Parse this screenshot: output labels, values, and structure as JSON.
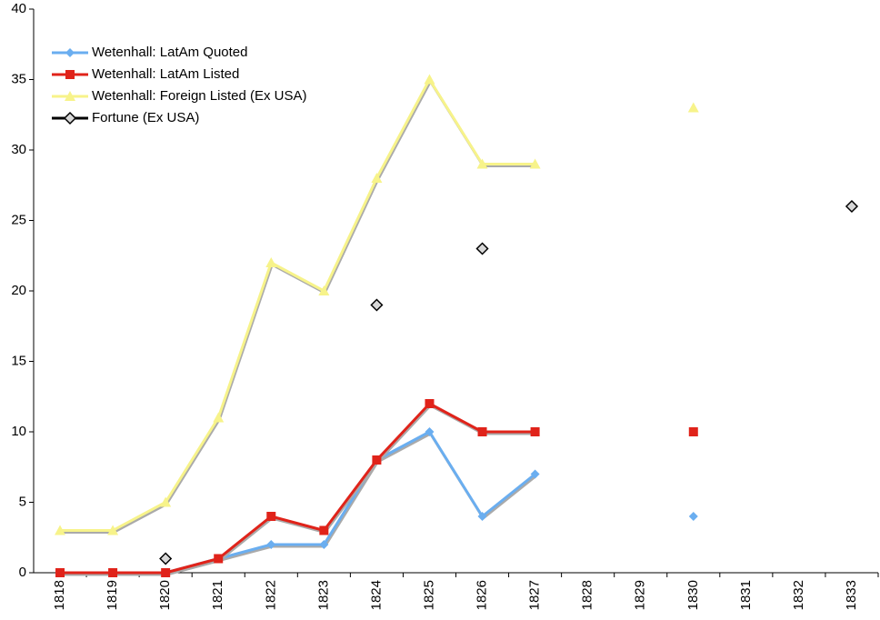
{
  "chart_data": {
    "type": "line",
    "categories": [
      "1818",
      "1819",
      "1820",
      "1821",
      "1822",
      "1823",
      "1824",
      "1825",
      "1826",
      "1827",
      "1828",
      "1829",
      "1830",
      "1831",
      "1832",
      "1833"
    ],
    "series": [
      {
        "name": "Wetenhall: LatAm Quoted",
        "color": "#6aaef0",
        "marker": "diamond",
        "line": true,
        "values": [
          0,
          0,
          0,
          1,
          2,
          2,
          8,
          10,
          4,
          7,
          null,
          null,
          4,
          null,
          null,
          null
        ]
      },
      {
        "name": "Wetenhall: LatAm Listed",
        "color": "#e0231a",
        "marker": "square",
        "line": true,
        "values": [
          0,
          0,
          0,
          1,
          4,
          3,
          8,
          12,
          10,
          10,
          null,
          null,
          10,
          null,
          null,
          null
        ]
      },
      {
        "name": "Wetenhall: Foreign Listed (Ex USA)",
        "color": "#f7f38a",
        "marker": "triangle",
        "line": true,
        "values": [
          3,
          3,
          5,
          11,
          22,
          20,
          28,
          35,
          29,
          29,
          null,
          null,
          33,
          null,
          null,
          null
        ]
      },
      {
        "name": "Fortune (Ex USA)",
        "color": "#000000",
        "marker": "open-diamond",
        "line": false,
        "values": [
          null,
          null,
          1,
          null,
          null,
          null,
          19,
          null,
          23,
          null,
          null,
          null,
          null,
          null,
          null,
          26
        ]
      }
    ],
    "ylim": [
      0,
      40
    ],
    "yticks": [
      0,
      5,
      10,
      15,
      20,
      25,
      30,
      35,
      40
    ],
    "grid": false,
    "legend": "top-left"
  }
}
